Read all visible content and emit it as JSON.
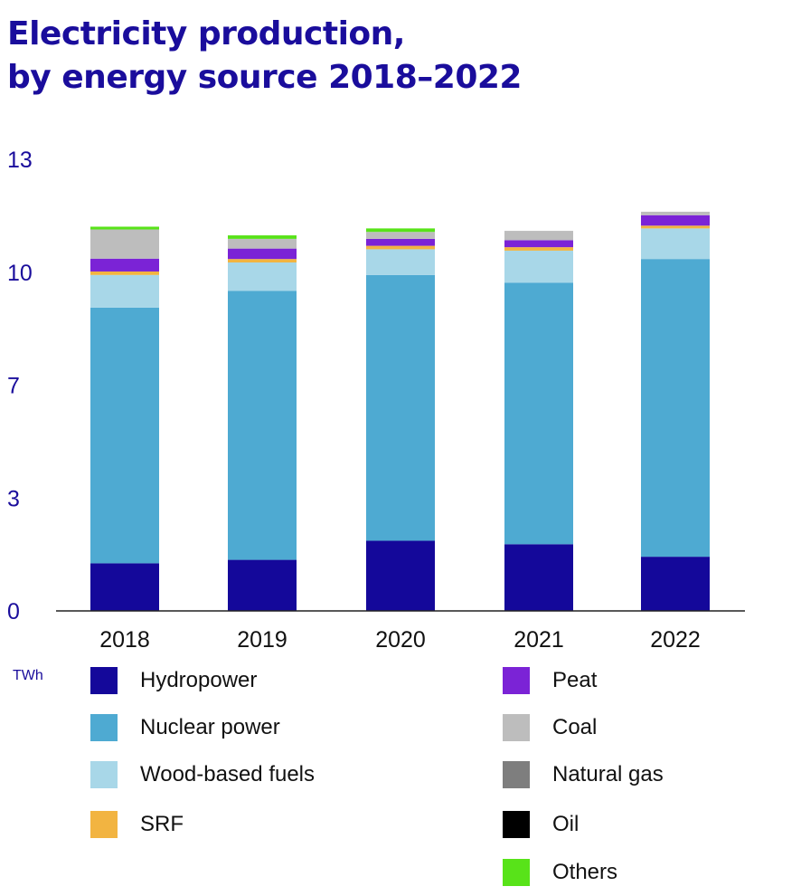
{
  "title_line1": "Electricity production,",
  "title_line2": "by energy source 2018–2022",
  "unit": "TWh",
  "chart_data": {
    "type": "bar",
    "stacked": true,
    "categories": [
      "2018",
      "2019",
      "2020",
      "2021",
      "2022"
    ],
    "y_ticks": [
      0,
      3,
      7,
      10,
      13
    ],
    "ylim": [
      0,
      13
    ],
    "grid": false,
    "series": [
      {
        "name": "Hydropower",
        "color": "#14089a",
        "values": [
          1.37,
          1.47,
          2.02,
          1.92,
          1.56
        ]
      },
      {
        "name": "Nuclear power",
        "color": "#4eaad2",
        "values": [
          7.36,
          7.74,
          7.65,
          7.53,
          8.57
        ]
      },
      {
        "name": "Wood-based fuels",
        "color": "#a8d7e8",
        "values": [
          0.94,
          0.82,
          0.74,
          0.92,
          0.88
        ]
      },
      {
        "name": "SRF",
        "color": "#f2b441",
        "values": [
          0.1,
          0.1,
          0.1,
          0.1,
          0.08
        ]
      },
      {
        "name": "Peat",
        "color": "#7b23d6",
        "values": [
          0.37,
          0.3,
          0.2,
          0.2,
          0.3
        ]
      },
      {
        "name": "Coal",
        "color": "#bdbdbd",
        "values": [
          0.84,
          0.28,
          0.2,
          0.27,
          0.1
        ]
      },
      {
        "name": "Natural gas",
        "color": "#7e7e7e",
        "values": [
          0.0,
          0.0,
          0.0,
          0.0,
          0.0
        ]
      },
      {
        "name": "Oil",
        "color": "#000000",
        "values": [
          0.0,
          0.0,
          0.0,
          0.0,
          0.0
        ]
      },
      {
        "name": "Others",
        "color": "#58e319",
        "values": [
          0.08,
          0.1,
          0.1,
          0.0,
          0.0
        ]
      }
    ]
  }
}
